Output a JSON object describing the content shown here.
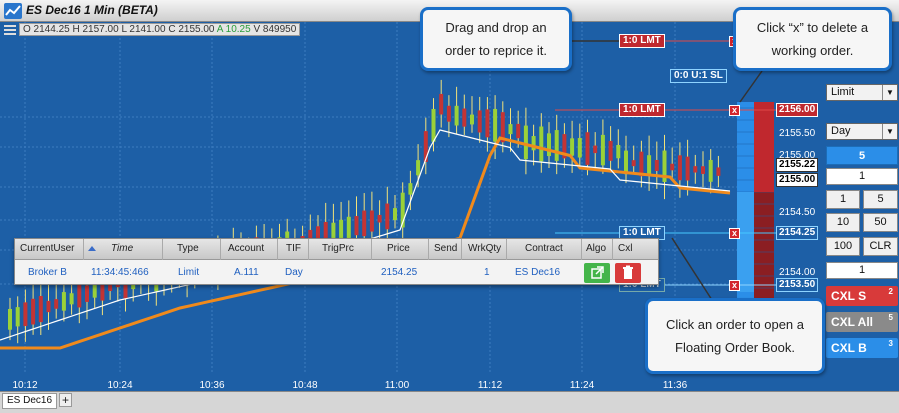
{
  "window": {
    "title": "ES Dec16 1 Min (BETA)",
    "accent": "#1d5fa6"
  },
  "ohlc": {
    "o": "O 2144.25",
    "h": "H 2157.00",
    "l": "L 2141.00",
    "c": "C 2155.00",
    "a": "A 10.25",
    "v": "V 849950"
  },
  "time_axis": [
    "10:12",
    "10:24",
    "10:36",
    "10:48",
    "11:00",
    "11:12",
    "11:24",
    "11:36"
  ],
  "price_axis": [
    "2155.50",
    "2155.00",
    "2154.50",
    "2154.00"
  ],
  "order_tags": {
    "top": "1:0 LMT",
    "sell": "1:0 LMT",
    "buy": "1:0 LMT",
    "bottom": "1:0 LMT",
    "position": "0:0 U:1 SL",
    "sell_price": "2156.00",
    "buy_price": "2154.25",
    "bottom_price": "2153.50",
    "last_price_1": "2155.22",
    "last_price_2": "2155.00",
    "x_symbol": "x"
  },
  "orders_table": {
    "headers": [
      "CurrentUser",
      "Time",
      "Type",
      "Account",
      "TIF",
      "TrigPrc",
      "Price",
      "Send",
      "WrkQty",
      "Contract",
      "Algo",
      "Cxl"
    ],
    "row": {
      "user": "Broker B",
      "time": "11:34:45:466",
      "type": "Limit",
      "account": "A.111",
      "tif": "Day",
      "trig": "",
      "price": "2154.25",
      "send": "",
      "wrkqty": "1",
      "contract": "ES Dec16"
    }
  },
  "right_panel": {
    "order_type": "Limit",
    "tif": "Day",
    "qty": "5",
    "field1": "1",
    "btns": [
      "1",
      "5",
      "10",
      "50",
      "100",
      "CLR"
    ],
    "field2": "1",
    "cxl_s": "CXL S",
    "cxl_s_count": "2",
    "cxl_all": "CXL All",
    "cxl_all_count": "5",
    "cxl_b": "CXL B",
    "cxl_b_count": "3"
  },
  "callouts": {
    "drag": "Drag and drop an order to reprice it.",
    "delete": "Click “x” to delete a working order.",
    "click": "Click an order to open a Floating Order Book."
  },
  "tabs": {
    "active": "ES Dec16",
    "add": "+"
  }
}
